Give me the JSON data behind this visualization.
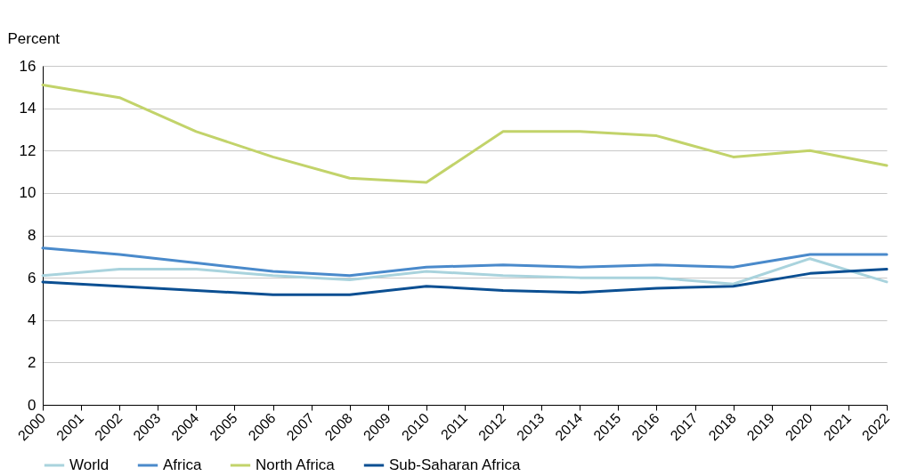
{
  "chart_data": {
    "type": "line",
    "ylabel": "Percent",
    "x": [
      2000,
      2002,
      2004,
      2006,
      2008,
      2010,
      2012,
      2014,
      2016,
      2018,
      2020,
      2022
    ],
    "xlim": [
      2000,
      2022
    ],
    "xticks": [
      2000,
      2001,
      2002,
      2003,
      2004,
      2005,
      2006,
      2007,
      2008,
      2009,
      2010,
      2011,
      2012,
      2013,
      2014,
      2015,
      2016,
      2017,
      2018,
      2019,
      2020,
      2021,
      2022
    ],
    "ylim": [
      0,
      16
    ],
    "yticks": [
      0,
      2,
      4,
      6,
      8,
      10,
      12,
      14,
      16
    ],
    "grid": "y",
    "legend": "bottom",
    "line_style": "solid",
    "series": [
      {
        "name": "World",
        "color": "#a9d3dd",
        "values": [
          6.1,
          6.4,
          6.4,
          6.1,
          5.9,
          6.3,
          6.1,
          6.0,
          6.0,
          5.7,
          6.9,
          5.8
        ]
      },
      {
        "name": "Africa",
        "color": "#4a8acb",
        "values": [
          7.4,
          7.1,
          6.7,
          6.3,
          6.1,
          6.5,
          6.6,
          6.5,
          6.6,
          6.5,
          7.1,
          7.1
        ]
      },
      {
        "name": "North Africa",
        "color": "#c2d36a",
        "values": [
          15.1,
          14.5,
          12.9,
          11.7,
          10.7,
          10.5,
          12.9,
          12.9,
          12.7,
          11.7,
          12.0,
          11.3
        ]
      },
      {
        "name": "Sub-Saharan Africa",
        "color": "#0b4f92",
        "values": [
          5.8,
          5.6,
          5.4,
          5.2,
          5.2,
          5.6,
          5.4,
          5.3,
          5.5,
          5.6,
          6.2,
          6.4
        ]
      }
    ]
  }
}
